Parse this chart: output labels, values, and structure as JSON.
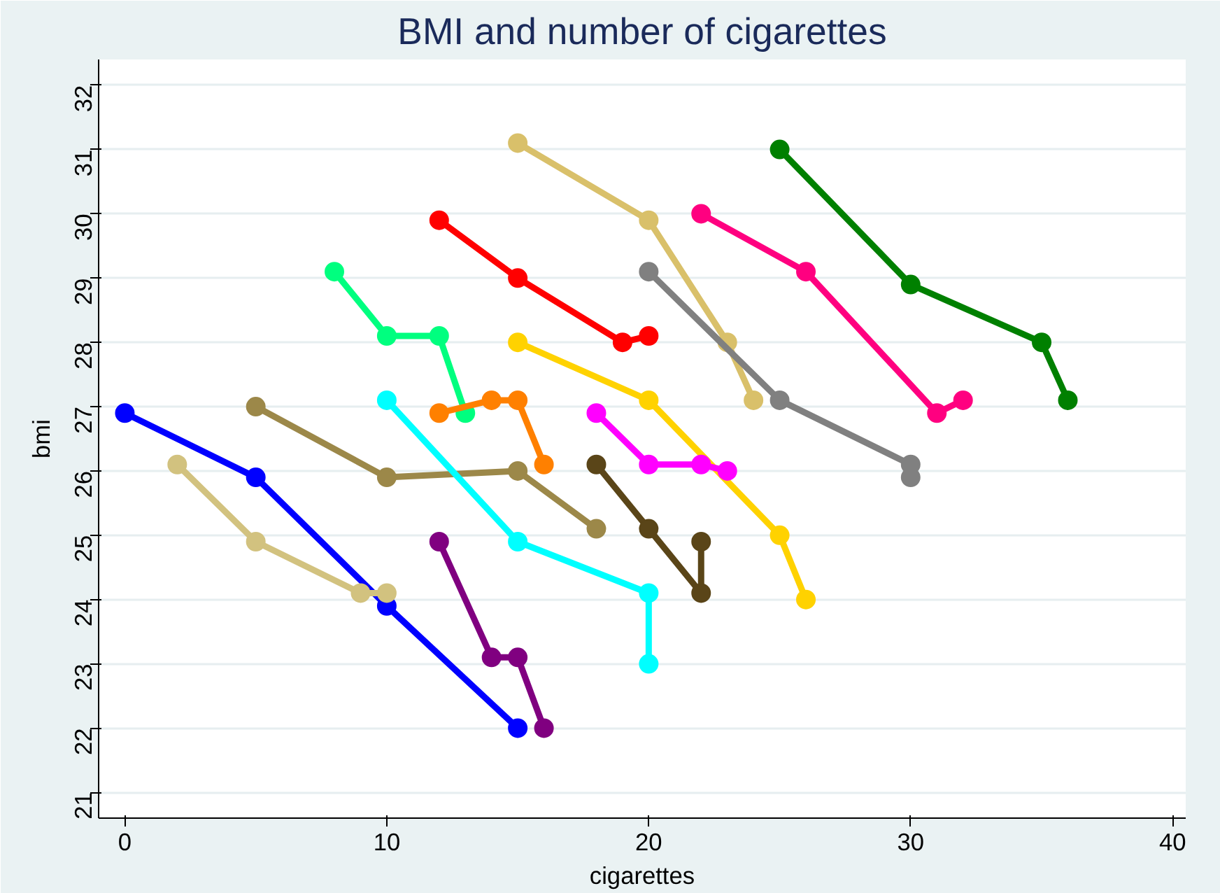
{
  "chart_data": {
    "type": "line",
    "title": "BMI and number of cigarettes",
    "xlabel": "cigarettes",
    "ylabel": "bmi",
    "xlim": [
      -1,
      40.5
    ],
    "ylim": [
      20.6,
      32.4
    ],
    "xticks": [
      0,
      10,
      20,
      30,
      40
    ],
    "yticks": [
      21,
      22,
      23,
      24,
      25,
      26,
      27,
      28,
      29,
      30,
      31,
      32
    ],
    "grid": "y",
    "marker": "circle",
    "series": [
      {
        "color": "#0000ff",
        "x": [
          0,
          5,
          10,
          15
        ],
        "values": [
          26.9,
          25.9,
          23.9,
          22
        ]
      },
      {
        "color": "#d2c27f",
        "x": [
          2,
          5,
          9,
          10
        ],
        "values": [
          26.1,
          24.9,
          24.1,
          24.1
        ]
      },
      {
        "color": "#00ff7f",
        "x": [
          8,
          10,
          12,
          13
        ],
        "values": [
          29.1,
          28.1,
          28.1,
          26.9
        ]
      },
      {
        "color": "#ff0000",
        "x": [
          12,
          15,
          19,
          20
        ],
        "values": [
          29.9,
          29,
          28,
          28.1
        ]
      },
      {
        "color": "#d9c06a",
        "x": [
          15,
          20,
          23,
          24
        ],
        "values": [
          31.1,
          29.9,
          28,
          27.1
        ]
      },
      {
        "color": "#008000",
        "x": [
          25,
          30,
          35,
          36
        ],
        "values": [
          31,
          28.9,
          28,
          27.1
        ]
      },
      {
        "color": "#ff0080",
        "x": [
          22,
          26,
          31,
          32
        ],
        "values": [
          30,
          29.1,
          26.9,
          27.1
        ]
      },
      {
        "color": "#808080",
        "x": [
          20,
          25,
          30,
          30
        ],
        "values": [
          29.1,
          27.1,
          26.1,
          25.9
        ]
      },
      {
        "color": "#ffd200",
        "x": [
          15,
          20,
          25,
          26
        ],
        "values": [
          28,
          27.1,
          25,
          24
        ]
      },
      {
        "color": "#ff8000",
        "x": [
          12,
          14,
          15,
          16
        ],
        "values": [
          26.9,
          27.1,
          27.1,
          26.1
        ]
      },
      {
        "color": "#9c8849",
        "x": [
          5,
          10,
          15,
          18
        ],
        "values": [
          27,
          25.9,
          26,
          25.1
        ]
      },
      {
        "color": "#00ffff",
        "x": [
          10,
          15,
          20,
          20
        ],
        "values": [
          27.1,
          24.9,
          24.1,
          23
        ]
      },
      {
        "color": "#ff00ff",
        "x": [
          18,
          20,
          22,
          23
        ],
        "values": [
          26.9,
          26.1,
          26.1,
          26
        ]
      },
      {
        "color": "#5a4518",
        "x": [
          18,
          20,
          22,
          22
        ],
        "values": [
          26.1,
          25.1,
          24.1,
          24.9
        ]
      },
      {
        "color": "#800080",
        "x": [
          12,
          14,
          15,
          16
        ],
        "values": [
          24.9,
          23.1,
          23.1,
          22
        ]
      }
    ]
  }
}
